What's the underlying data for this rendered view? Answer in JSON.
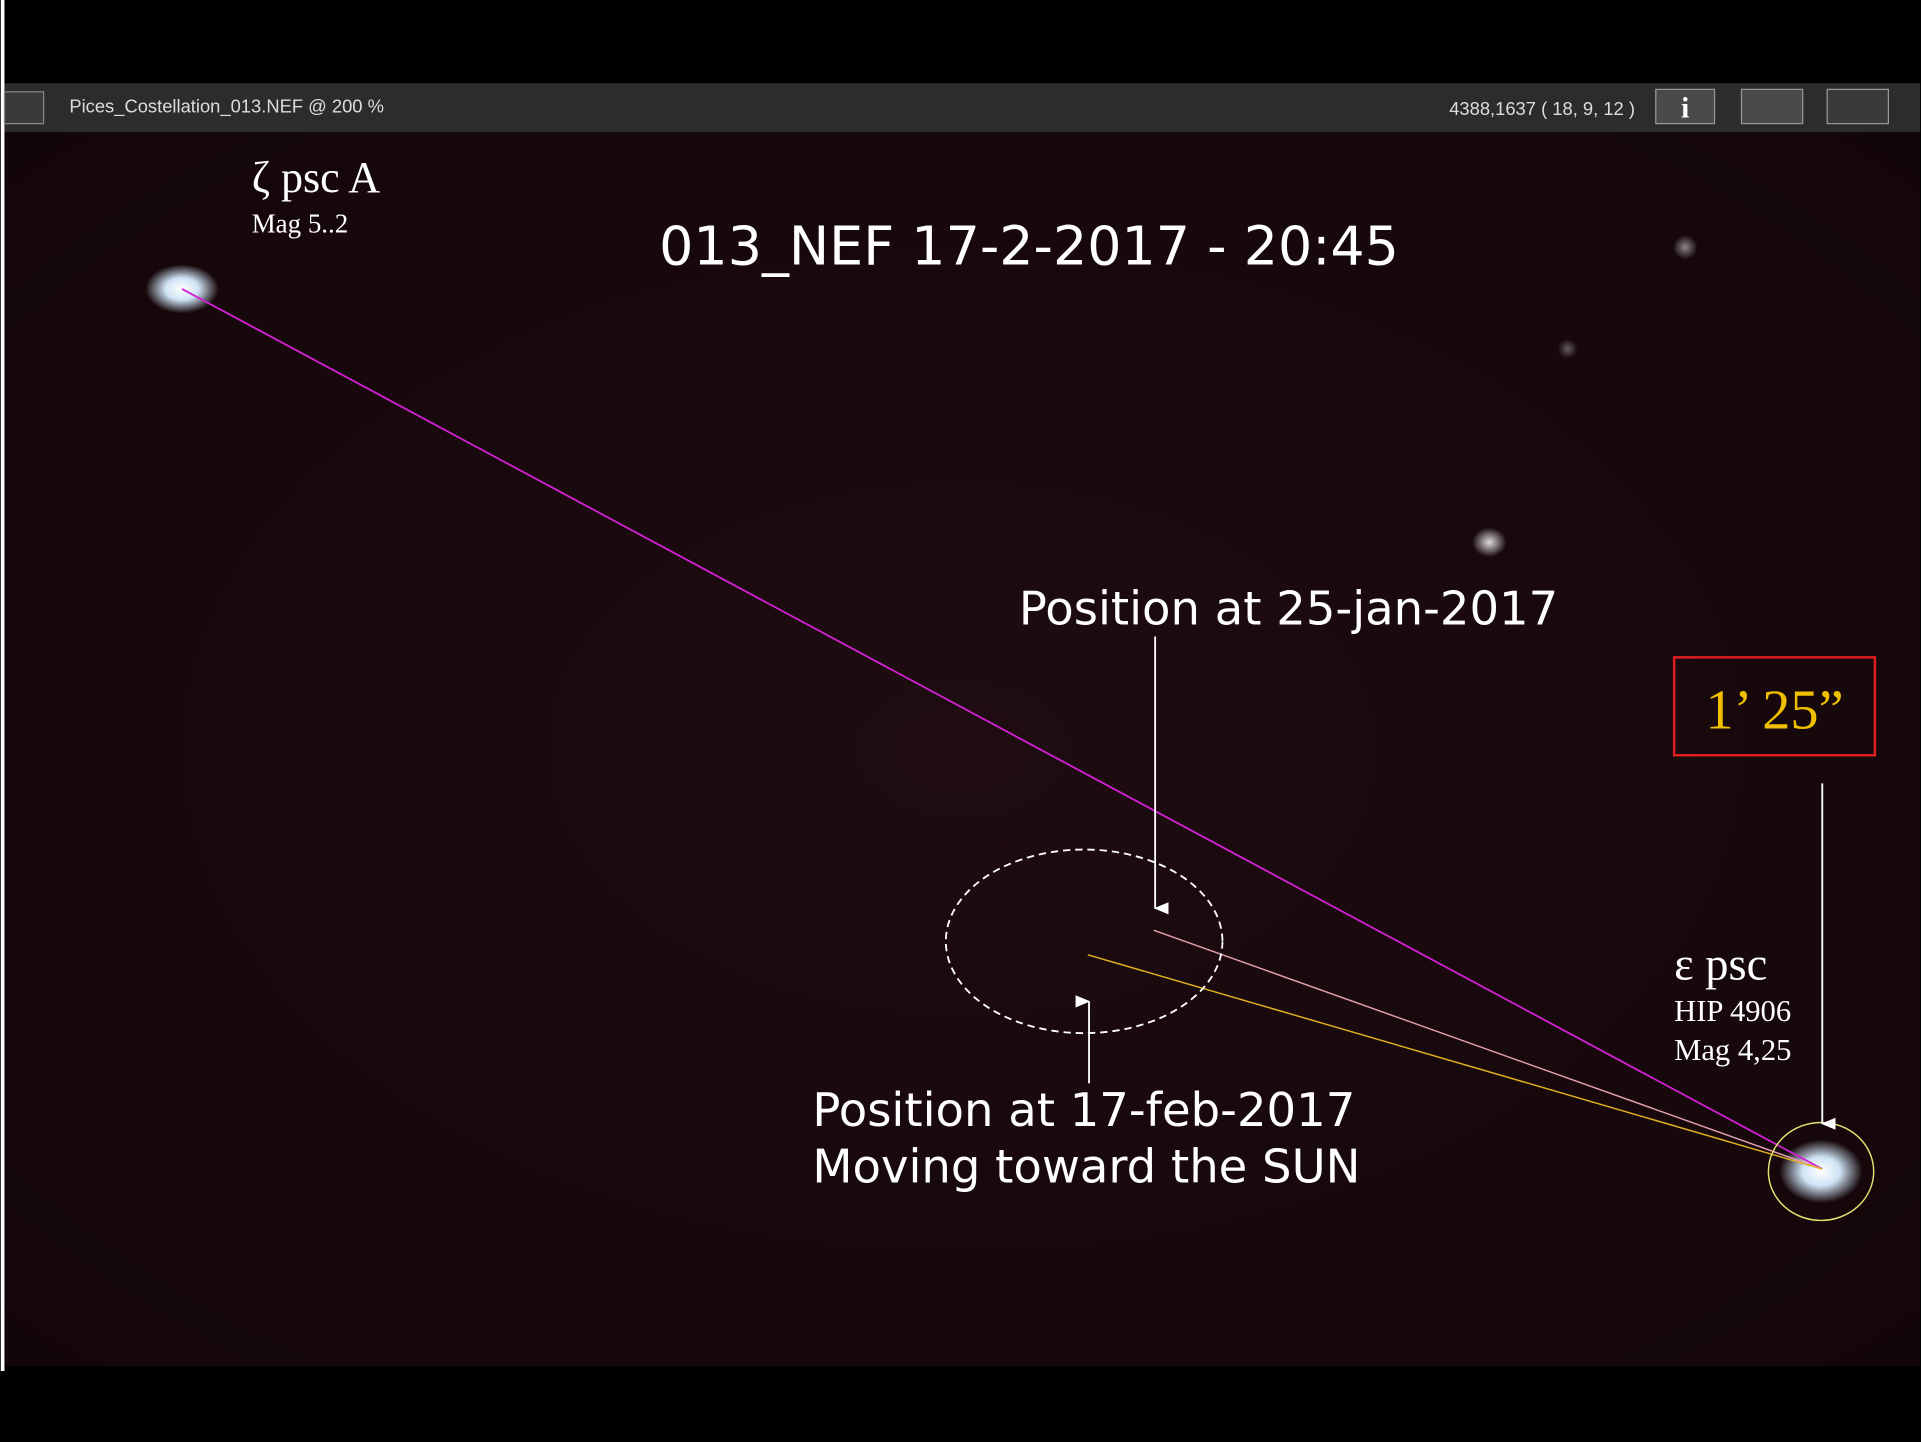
{
  "toolbar": {
    "filename": "Pices_Costellation_013.NEF @ 200 %",
    "coordinates": "4388,1637 ( 18,  9, 12 )",
    "info_button": "i"
  },
  "image": {
    "title": "013_NEF 17-2-2017 - 20:45",
    "star_a": {
      "name": "ζ psc A",
      "mag": "Mag 5..2"
    },
    "star_b": {
      "name": "ε psc",
      "hip": "HIP 4906",
      "mag": "Mag 4,25"
    },
    "position_jan": "Position at 25-jan-2017",
    "position_feb": [
      "Position at 17-feb-2017",
      "Moving toward the SUN"
    ],
    "separation": "1’ 25”"
  }
}
